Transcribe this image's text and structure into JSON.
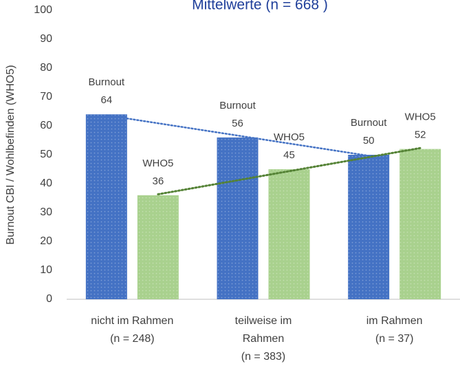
{
  "chart_data": {
    "type": "bar",
    "title": "Mittelwerte (n = 668 )",
    "y_label": "Burnout CBI  / Wohlbefinden (WHO5)",
    "categories": [
      "nicht im Rahmen\n(n = 248)",
      "teilweise im\nRahmen\n(n = 383)",
      "im Rahmen\n(n = 37)"
    ],
    "series": [
      {
        "name": "Burnout",
        "color": "#4472c4",
        "trend_color": "#4472c4",
        "values": [
          64,
          56,
          50
        ]
      },
      {
        "name": "WHO5",
        "color": "#a9d18e",
        "trend_color": "#548235",
        "values": [
          36,
          45,
          52
        ]
      }
    ],
    "ylim": [
      0,
      100
    ],
    "yticks": [
      0,
      10,
      20,
      30,
      40,
      50,
      60,
      70,
      80,
      90,
      100
    ],
    "grid": false,
    "trendline": true,
    "data_labels": true
  }
}
